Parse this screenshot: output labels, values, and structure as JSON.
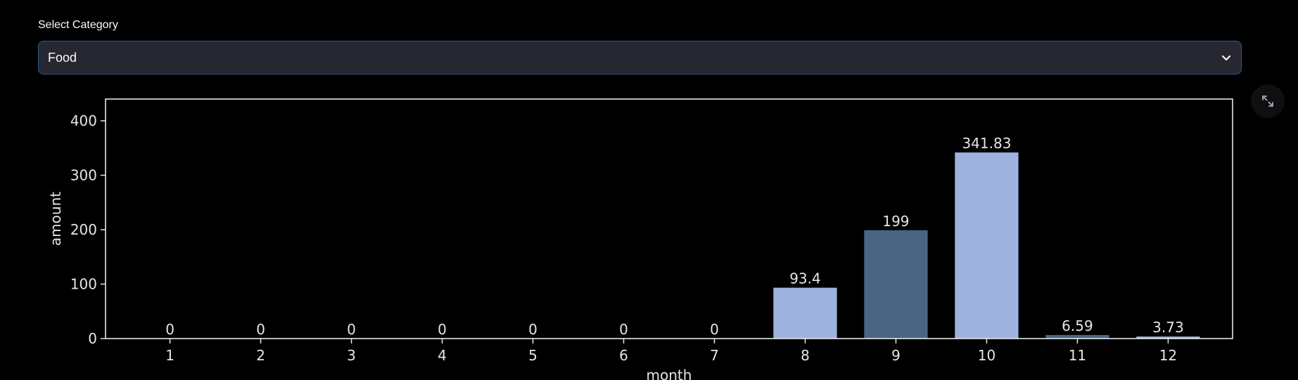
{
  "select": {
    "label": "Select Category",
    "value": "Food"
  },
  "icons": {
    "chevron": "chevron-down-icon",
    "expand": "fullscreen-expand-icon"
  },
  "colors": {
    "bar_light": "#9db3de",
    "bar_dark": "#4a6584",
    "axes": "#e6e6e6"
  },
  "chart_data": {
    "type": "bar",
    "categories": [
      "1",
      "2",
      "3",
      "4",
      "5",
      "6",
      "7",
      "8",
      "9",
      "10",
      "11",
      "12"
    ],
    "values": [
      0,
      0,
      0,
      0,
      0,
      0,
      0,
      93.4,
      199,
      341.83,
      6.59,
      3.73
    ],
    "value_labels": [
      "0",
      "0",
      "0",
      "0",
      "0",
      "0",
      "0",
      "93.4",
      "199",
      "341.83",
      "6.59",
      "3.73"
    ],
    "bar_colors": [
      "#9db3de",
      "#9db3de",
      "#9db3de",
      "#9db3de",
      "#9db3de",
      "#9db3de",
      "#9db3de",
      "#9db3de",
      "#4a6584",
      "#9db3de",
      "#4a6584",
      "#9db3de"
    ],
    "xlabel": "month",
    "ylabel": "amount",
    "ylim": [
      0,
      440
    ],
    "yticks": [
      0,
      100,
      200,
      300,
      400
    ],
    "grid": false
  }
}
